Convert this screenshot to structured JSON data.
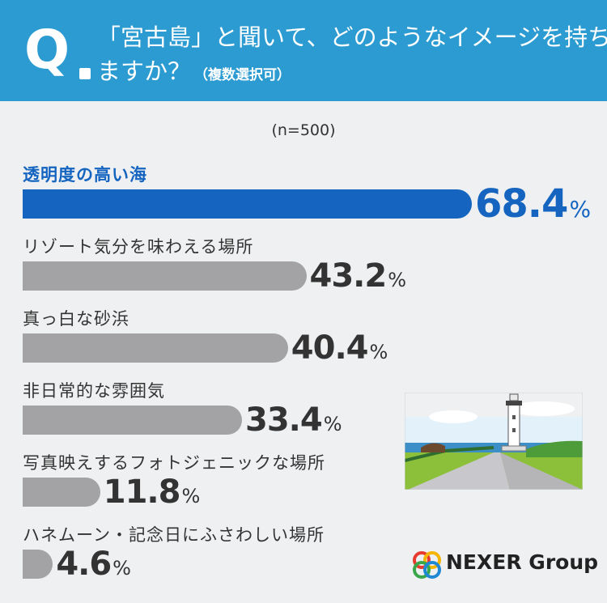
{
  "header": {
    "q": "Q",
    "line1": "「宮古島」と聞いて、どのようなイメージを持ち",
    "line2": "ますか？",
    "sub": "（複数選択可）"
  },
  "sample": "(n=500)",
  "chart_data": {
    "type": "bar",
    "categories": [
      "透明度の高い海",
      "リゾート気分を味わえる場所",
      "真っ白な砂浜",
      "非日常的な雰囲気",
      "写真映えするフォトジェニックな場所",
      "ハネムーン・記念日にふさわしい場所"
    ],
    "values": [
      68.4,
      43.2,
      40.4,
      33.4,
      11.8,
      4.6
    ],
    "value_labels": [
      "68.4",
      "43.2",
      "40.4",
      "33.4",
      "11.8",
      "4.6"
    ],
    "unit": "%",
    "xlim": [
      0,
      100
    ],
    "colors": {
      "highlight": "#1565c0",
      "default": "#a3a3a6"
    }
  },
  "logo": {
    "text": "NEXER Group"
  }
}
